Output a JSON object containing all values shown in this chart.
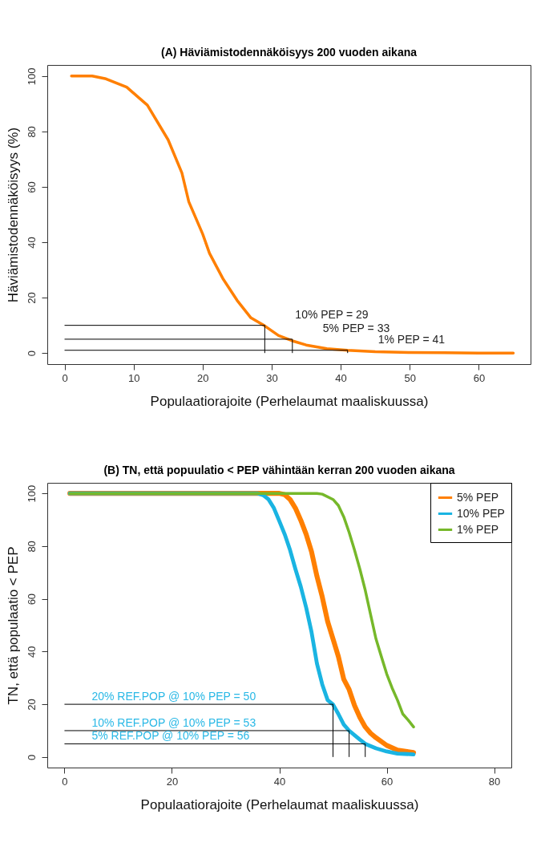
{
  "chart_data": [
    {
      "type": "line",
      "title": "(A) Häviämistodennäköisyys  200 vuoden aikana",
      "xlabel": "Populaatiorajoite (Perhelaumat maaliskuussa)",
      "ylabel": "Häviämistodennäköisyys (%)",
      "series": [
        {
          "color": "#ff7f00",
          "x": [
            1,
            4,
            6,
            9,
            12,
            15,
            17,
            18,
            20,
            21,
            23,
            25,
            27,
            29,
            31,
            33,
            35,
            38,
            41,
            45,
            50,
            55,
            60,
            65
          ],
          "values": [
            100,
            100,
            99,
            96,
            89.5,
            77,
            65,
            54.6,
            43,
            36,
            26.6,
            19,
            12.7,
            9.8,
            6.3,
            4.4,
            2.9,
            1.6,
            1,
            0.5,
            0.2,
            0.1,
            0,
            0
          ]
        },
        {
          "type": "step",
          "color": "#000000",
          "x": [
            0,
            29
          ],
          "values": [
            10,
            0
          ]
        },
        {
          "type": "step",
          "color": "#000000",
          "x": [
            0,
            33
          ],
          "values": [
            5,
            0
          ]
        },
        {
          "type": "step",
          "color": "#000000",
          "x": [
            0,
            41
          ],
          "values": [
            1,
            0
          ]
        }
      ],
      "xlim": [
        -2.5,
        67.5
      ],
      "ylim": [
        -4,
        104
      ],
      "xticks": [
        0,
        10,
        20,
        30,
        40,
        50,
        60
      ],
      "yticks": [
        0,
        20,
        40,
        60,
        80,
        100
      ],
      "legend": false,
      "marker": "none",
      "line_style": "solid",
      "annotations": [
        {
          "text": "10% PEP =  29",
          "x": 29,
          "y": 10
        },
        {
          "text": "5% PEP =  33",
          "x": 33,
          "y": 5
        },
        {
          "text": "1% PEP =  41",
          "x": 41,
          "y": 1
        }
      ]
    },
    {
      "type": "line",
      "title": "(B) TN, että popuulatio < PEP vähintään kerran  200 vuoden aikana",
      "xlabel": "Populaatiorajoite (Perhelaumat maaliskuussa)",
      "ylabel": "TN, että populaatio < PEP",
      "series": [
        {
          "name": "5% PEP",
          "color": "#ff7f00",
          "x": [
            1,
            40,
            41,
            42,
            43,
            44,
            45,
            46,
            47,
            48,
            49,
            50,
            51,
            52,
            53,
            54,
            55,
            56,
            57,
            58,
            60,
            62,
            65
          ],
          "values": [
            100,
            100,
            99.5,
            97.7,
            94.4,
            89.8,
            84.5,
            77.9,
            68.6,
            60.7,
            51.4,
            44.8,
            38.1,
            29.5,
            25.6,
            19.6,
            15,
            11.4,
            9,
            7.3,
            4.4,
            2.6,
            1.7
          ]
        },
        {
          "name": "10% PEP",
          "color": "#1ab4e2",
          "x": [
            1,
            36,
            37,
            38,
            39,
            40,
            41,
            42,
            43,
            44,
            45,
            46,
            47,
            48,
            49,
            50,
            51,
            52,
            53,
            54,
            55,
            56,
            58,
            60,
            62,
            65
          ],
          "values": [
            100,
            100,
            99.3,
            97.7,
            94.4,
            89.5,
            84.5,
            78.5,
            71.3,
            64.6,
            56.7,
            47.4,
            35.5,
            27.5,
            21.6,
            19.9,
            16.3,
            12.3,
            10,
            8.3,
            6.6,
            5,
            3.3,
            2.1,
            1.3,
            1
          ]
        },
        {
          "name": "1% PEP",
          "color": "#76b82a",
          "x": [
            1,
            47,
            48,
            50,
            51,
            52,
            53,
            54,
            55,
            56,
            57,
            58,
            59,
            60,
            61,
            62,
            63,
            64,
            65
          ],
          "values": [
            100,
            100,
            99.7,
            97.7,
            95.4,
            91.1,
            85.2,
            78.5,
            71.3,
            63.3,
            54,
            44.8,
            38.1,
            31.5,
            26.2,
            21.6,
            16.3,
            14,
            11.4
          ]
        },
        {
          "type": "step",
          "color": "#000000",
          "x": [
            0,
            50
          ],
          "values": [
            20,
            0
          ]
        },
        {
          "type": "step",
          "color": "#000000",
          "x": [
            0,
            53
          ],
          "values": [
            10,
            0
          ]
        },
        {
          "type": "step",
          "color": "#000000",
          "x": [
            0,
            56
          ],
          "values": [
            5,
            0
          ]
        }
      ],
      "xlim": [
        -3.2,
        83.2
      ],
      "ylim": [
        -4,
        104
      ],
      "xticks": [
        0,
        20,
        40,
        60,
        80
      ],
      "yticks": [
        0,
        20,
        40,
        60,
        80,
        100
      ],
      "legend": "top right",
      "marker": "none",
      "line_style": "solid",
      "annotations": [
        "20% REF.POP @ 10% PEP = 50",
        "10% REF.POP @ 10% PEP = 53",
        "5% REF.POP @ 10% PEP = 56"
      ]
    }
  ]
}
